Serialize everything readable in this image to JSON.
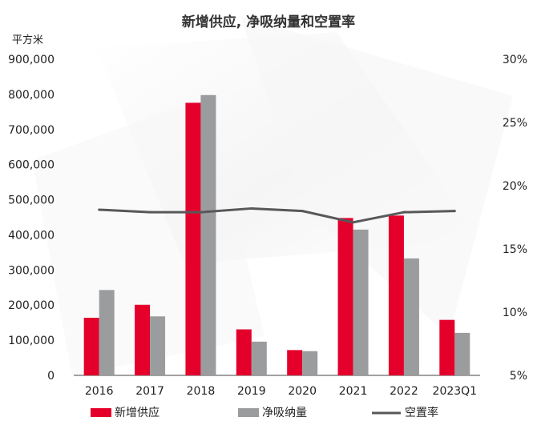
{
  "colors": {
    "supply": "#e4002b",
    "absorption": "#9b9c9e",
    "vacancy": "#58585a",
    "axis": "#444444"
  },
  "chart_data": {
    "type": "bar",
    "title": "新增供应, 净吸纳量和空置率",
    "ylabel": "平方米",
    "categories": [
      "2016",
      "2017",
      "2018",
      "2019",
      "2020",
      "2021",
      "2022",
      "2023Q1"
    ],
    "series": [
      {
        "name": "新增供应",
        "type": "bar",
        "axis": "left",
        "values": [
          164000,
          201000,
          776000,
          131000,
          72000,
          448000,
          455000,
          158000
        ]
      },
      {
        "name": "净吸纳量",
        "type": "bar",
        "axis": "left",
        "values": [
          243000,
          168000,
          798000,
          96000,
          69000,
          415000,
          333000,
          121000
        ]
      },
      {
        "name": "空置率",
        "type": "line",
        "axis": "right",
        "values": [
          18.1,
          17.9,
          17.9,
          18.2,
          18.0,
          17.1,
          17.9,
          18.0
        ]
      }
    ],
    "ylim": [
      0,
      900000
    ],
    "yticks": [
      "0",
      "100,000",
      "200,000",
      "300,000",
      "400,000",
      "500,000",
      "600,000",
      "700,000",
      "800,000",
      "900,000"
    ],
    "y2lim": [
      5,
      30
    ],
    "y2ticks": [
      "5%",
      "10%",
      "15%",
      "20%",
      "25%",
      "30%"
    ],
    "legend_position": "bottom",
    "grid": false
  }
}
